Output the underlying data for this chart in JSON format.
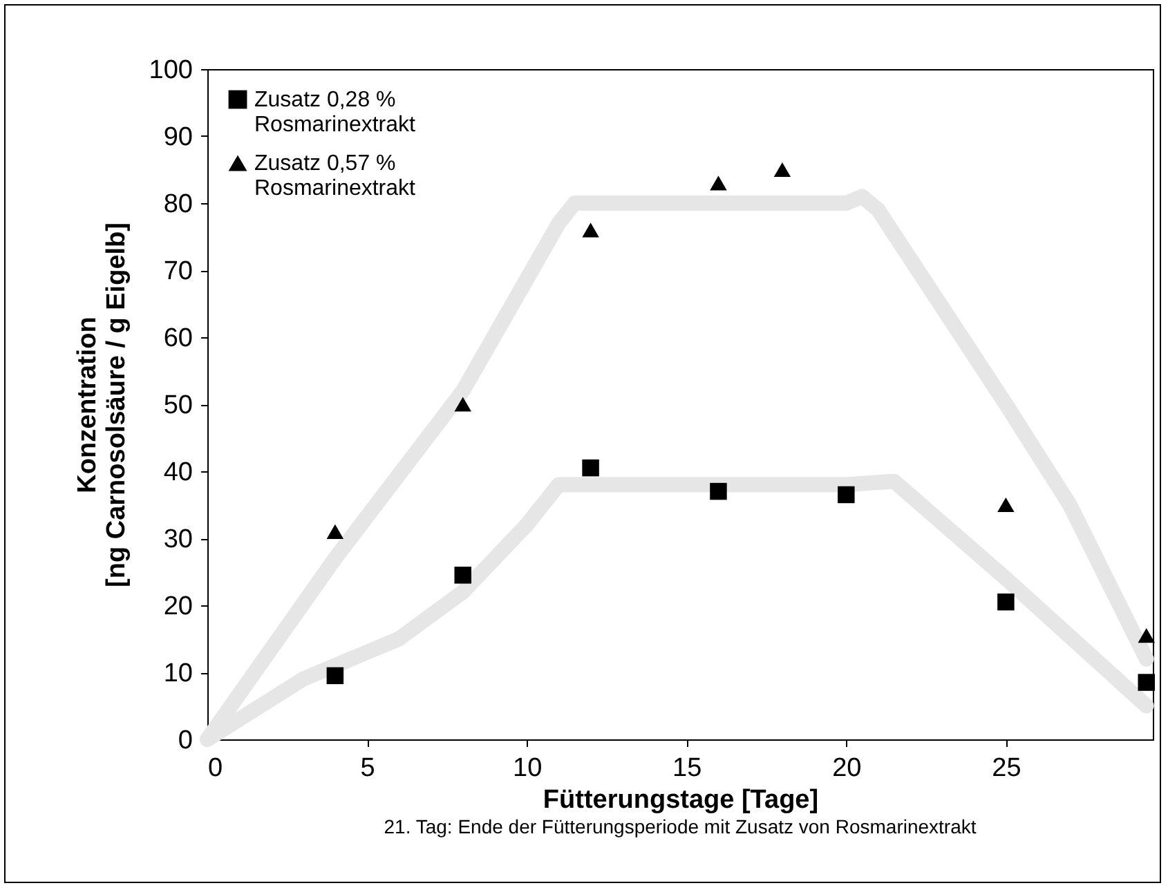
{
  "chart_data": {
    "type": "scatter",
    "xlabel": "Fütterungstage [Tage]",
    "ylabel": "Konzentration [ng Carnosolsäure / g Eigelb]",
    "annotations": [
      "21. Tag: Ende der Fütterungsperiode mit Zusatz von Rosmarinextrakt"
    ],
    "xlim": [
      0,
      29.6
    ],
    "ylim": [
      0,
      100
    ],
    "xticks": [
      0,
      5,
      10,
      15,
      20,
      25
    ],
    "yticks": [
      0,
      10,
      20,
      30,
      40,
      50,
      60,
      70,
      80,
      90,
      100
    ],
    "grid": false,
    "legend": "top left",
    "series": [
      {
        "type": "line",
        "color": "#e6e6e6",
        "x": [
          0,
          3,
          6,
          8,
          10,
          11,
          12,
          20,
          21.5,
          25,
          29.4
        ],
        "values": [
          0,
          9,
          15,
          22,
          32,
          38,
          38,
          38,
          38.5,
          24,
          5
        ]
      },
      {
        "type": "line",
        "color": "#e6e6e6",
        "x": [
          0,
          4,
          8,
          11,
          11.5,
          13,
          20,
          20.5,
          21,
          25,
          27,
          29.4
        ],
        "values": [
          0,
          27,
          52,
          77,
          80,
          80,
          80,
          81,
          79,
          50,
          35,
          12
        ]
      },
      {
        "name": "Zusatz 0,28 % Rosmarinextrakt",
        "color": "#000000",
        "marker": "square",
        "x": [
          4,
          8,
          12,
          16,
          20,
          25,
          29.4
        ],
        "values": [
          9.5,
          24.5,
          40.5,
          37,
          36.5,
          20.5,
          8.5
        ]
      },
      {
        "name": "Zusatz 0,57 % Rosmarinextrakt",
        "color": "#000000",
        "marker": "triangle",
        "x": [
          4,
          8,
          12,
          16,
          18,
          25,
          29.4
        ],
        "values": [
          31,
          50,
          76,
          83,
          85,
          35,
          15.5
        ]
      }
    ]
  }
}
